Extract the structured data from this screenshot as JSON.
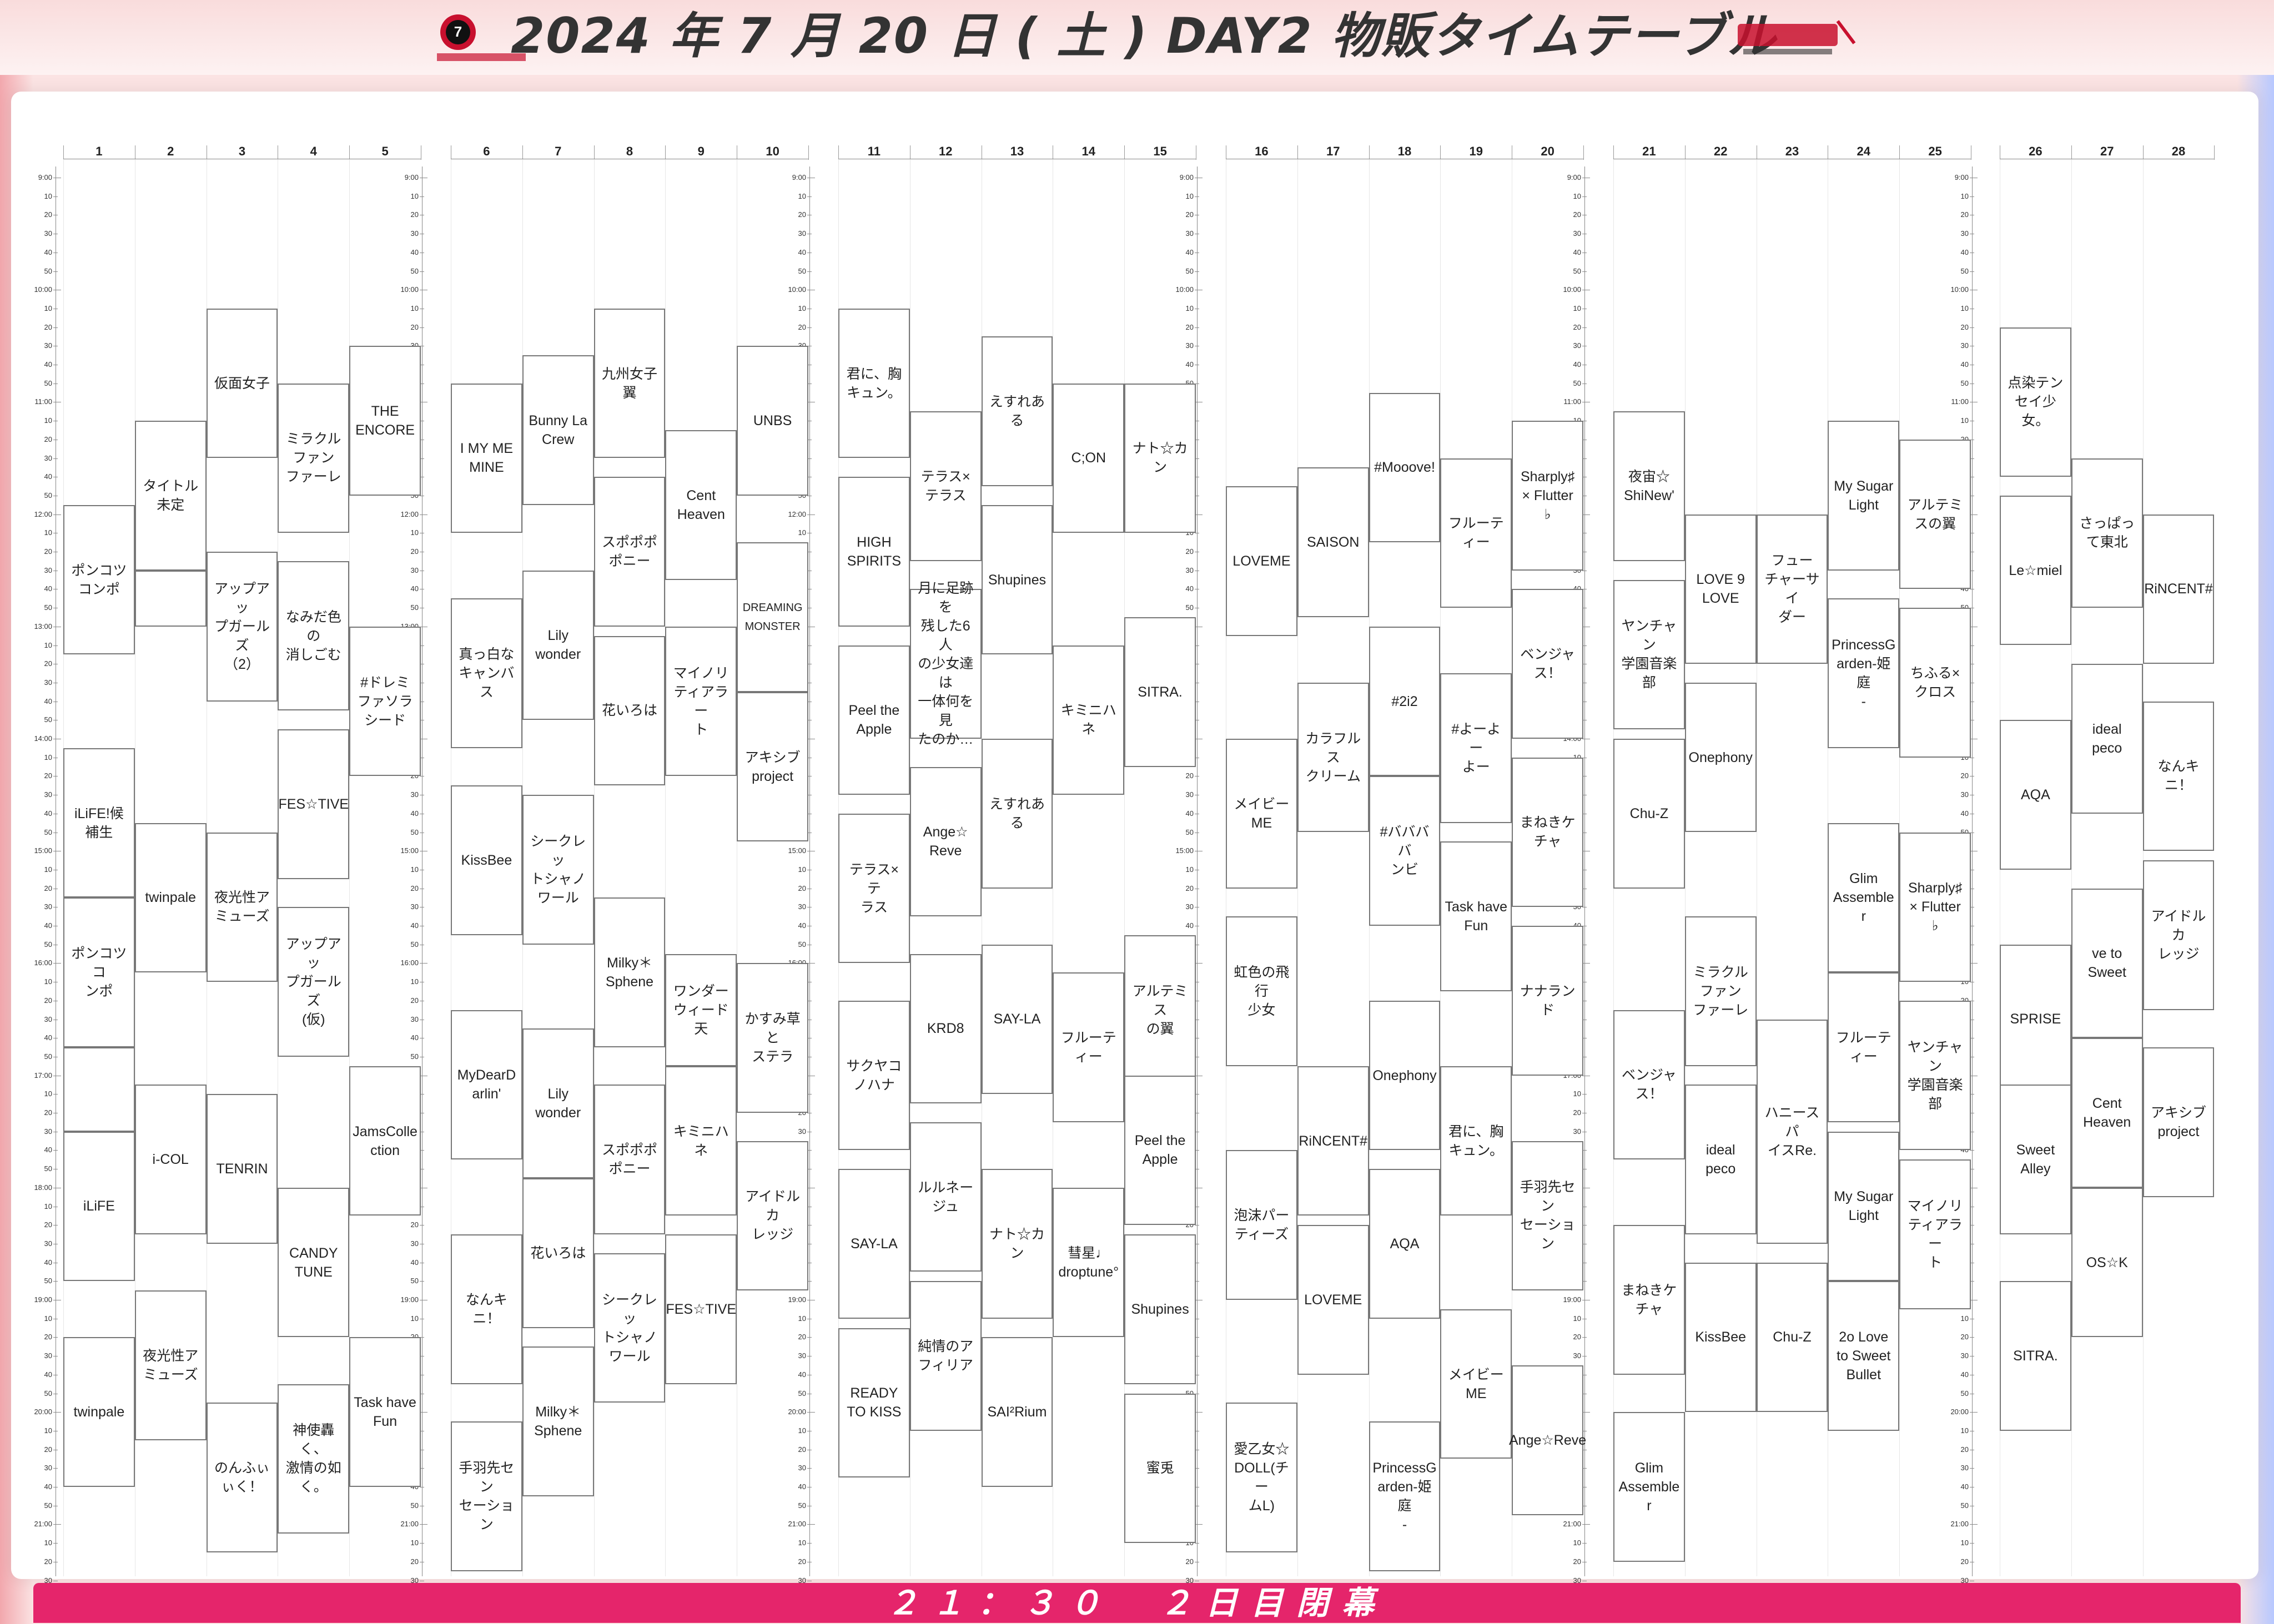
{
  "header": {
    "title": "2024 年 7 月 20 日 ( 土 ) DAY2 物販タイムテーブル",
    "logo_left_icon": "anniversary-logo-icon",
    "logo_right_icon": "event-logo-icon"
  },
  "footer": {
    "text": "２１：３０　２日目閉幕"
  },
  "colors": {
    "footer": "#e5256b",
    "slot_border": "#777777",
    "background": "#fbe3e3"
  },
  "timeline": {
    "hour_labels": [
      "9:00",
      "10:00",
      "11:00",
      "12:00",
      "13:00",
      "14:00",
      "15:00",
      "16:00",
      "17:00",
      "18:00",
      "19:00",
      "20:00",
      "21:00"
    ],
    "minute_labels": [
      "10",
      "20",
      "30",
      "40",
      "50"
    ],
    "end_label": "30"
  },
  "columns": [
    "1",
    "2",
    "3",
    "4",
    "5",
    "6",
    "7",
    "8",
    "9",
    "10",
    "11",
    "12",
    "13",
    "14",
    "15",
    "16",
    "17",
    "18",
    "19",
    "20",
    "21",
    "22",
    "23",
    "24",
    "25",
    "26",
    "27",
    "28"
  ],
  "slots": [
    {
      "col": 1,
      "start": "11:55",
      "end": "13:15",
      "name": "ポンコツコンポ"
    },
    {
      "col": 1,
      "start": "14:05",
      "end": "15:25",
      "name": "iLiFE!候補生"
    },
    {
      "col": 1,
      "start": "15:25",
      "end": "16:45",
      "name": "ポンコツコ\nンポ"
    },
    {
      "col": 1,
      "start": "16:45",
      "end": "17:30",
      "name": ""
    },
    {
      "col": 1,
      "start": "17:30",
      "end": "18:50",
      "name": "iLiFE"
    },
    {
      "col": 1,
      "start": "19:20",
      "end": "20:40",
      "name": "twinpale"
    },
    {
      "col": 2,
      "start": "11:10",
      "end": "12:30",
      "name": "タイトル未定"
    },
    {
      "col": 2,
      "start": "12:30",
      "end": "13:00",
      "name": ""
    },
    {
      "col": 2,
      "start": "14:45",
      "end": "16:05",
      "name": "twinpale"
    },
    {
      "col": 2,
      "start": "17:05",
      "end": "18:25",
      "name": "i-COL"
    },
    {
      "col": 2,
      "start": "18:55",
      "end": "20:15",
      "name": "夜光性ア\nミューズ"
    },
    {
      "col": 3,
      "start": "10:10",
      "end": "11:30",
      "name": "仮面女子"
    },
    {
      "col": 3,
      "start": "12:20",
      "end": "13:40",
      "name": "アップアッ\nプガールズ\n（2）"
    },
    {
      "col": 3,
      "start": "14:50",
      "end": "16:10",
      "name": "夜光性ア\nミューズ"
    },
    {
      "col": 3,
      "start": "17:10",
      "end": "18:30",
      "name": "TENRIN"
    },
    {
      "col": 3,
      "start": "19:55",
      "end": "21:15",
      "name": "のんふぃぃく！"
    },
    {
      "col": 4,
      "start": "10:50",
      "end": "12:10",
      "name": "ミラクル\nファン\nファーレ"
    },
    {
      "col": 4,
      "start": "12:25",
      "end": "13:45",
      "name": "なみだ色の\n消しごむ"
    },
    {
      "col": 4,
      "start": "13:55",
      "end": "15:15",
      "name": "FES☆TIVE"
    },
    {
      "col": 4,
      "start": "15:30",
      "end": "16:50",
      "name": "アップアッ\nプガールズ\n(仮)"
    },
    {
      "col": 4,
      "start": "18:00",
      "end": "19:20",
      "name": "CANDY\nTUNE"
    },
    {
      "col": 4,
      "start": "19:45",
      "end": "21:05",
      "name": "神使轟く、\n激情の如\nく。"
    },
    {
      "col": 5,
      "start": "10:30",
      "end": "11:50",
      "name": "THE ENCORE"
    },
    {
      "col": 5,
      "start": "13:00",
      "end": "14:20",
      "name": "#ドレミ\nファソラ\nシード"
    },
    {
      "col": 5,
      "start": "16:55",
      "end": "18:15",
      "name": "JamsColle\nction"
    },
    {
      "col": 5,
      "start": "19:20",
      "end": "20:40",
      "name": "Task have\nFun"
    },
    {
      "col": 6,
      "start": "10:50",
      "end": "12:10",
      "name": "I MY ME\nMINE"
    },
    {
      "col": 6,
      "start": "12:45",
      "end": "14:05",
      "name": "真っ白な\nキャンバス"
    },
    {
      "col": 6,
      "start": "14:25",
      "end": "15:45",
      "name": "KissBee"
    },
    {
      "col": 6,
      "start": "16:25",
      "end": "17:45",
      "name": "MyDearD\narlin'"
    },
    {
      "col": 6,
      "start": "18:25",
      "end": "19:45",
      "name": "なんキニ！"
    },
    {
      "col": 6,
      "start": "20:05",
      "end": "21:25",
      "name": "手羽先セン\nセーション"
    },
    {
      "col": 7,
      "start": "10:35",
      "end": "11:55",
      "name": "Bunny La\nCrew"
    },
    {
      "col": 7,
      "start": "12:30",
      "end": "13:50",
      "name": "Lily wonder"
    },
    {
      "col": 7,
      "start": "14:30",
      "end": "15:50",
      "name": "シークレッ\nトシャノ\nワール"
    },
    {
      "col": 7,
      "start": "16:35",
      "end": "17:55",
      "name": "Lily wonder"
    },
    {
      "col": 7,
      "start": "17:55",
      "end": "19:15",
      "name": "花いろは"
    },
    {
      "col": 7,
      "start": "19:25",
      "end": "20:45",
      "name": "Milky＊\nSphene"
    },
    {
      "col": 8,
      "start": "10:10",
      "end": "11:30",
      "name": "九州女子翼"
    },
    {
      "col": 8,
      "start": "11:40",
      "end": "13:00",
      "name": "スポポポポニー"
    },
    {
      "col": 8,
      "start": "13:05",
      "end": "14:25",
      "name": "花いろは"
    },
    {
      "col": 8,
      "start": "15:25",
      "end": "16:45",
      "name": "Milky＊\nSphene"
    },
    {
      "col": 8,
      "start": "17:05",
      "end": "18:25",
      "name": "スポポポポニー"
    },
    {
      "col": 8,
      "start": "18:35",
      "end": "19:55",
      "name": "シークレッ\nトシャノ\nワール"
    },
    {
      "col": 9,
      "start": "11:15",
      "end": "12:35",
      "name": "Cent Heaven"
    },
    {
      "col": 9,
      "start": "13:00",
      "end": "14:20",
      "name": "マイノリ\nティアラー\nト"
    },
    {
      "col": 9,
      "start": "15:55",
      "end": "16:55",
      "name": "ワンダー\nウィード 天"
    },
    {
      "col": 9,
      "start": "16:55",
      "end": "18:15",
      "name": "キミニハネ"
    },
    {
      "col": 9,
      "start": "18:25",
      "end": "19:45",
      "name": "FES☆TIVE"
    },
    {
      "col": 10,
      "start": "10:30",
      "end": "11:50",
      "name": "UNBS"
    },
    {
      "col": 10,
      "start": "12:15",
      "end": "13:35",
      "name": "DREAMING MONSTER"
    },
    {
      "col": 10,
      "start": "13:35",
      "end": "14:55",
      "name": "アキシブ\nproject"
    },
    {
      "col": 10,
      "start": "16:00",
      "end": "17:20",
      "name": "かすみ草と\nステラ"
    },
    {
      "col": 10,
      "start": "17:35",
      "end": "18:55",
      "name": "アイドルカ\nレッジ"
    },
    {
      "col": 11,
      "start": "10:10",
      "end": "11:30",
      "name": "君に、胸\nキュン。"
    },
    {
      "col": 11,
      "start": "11:40",
      "end": "13:00",
      "name": "HIGH SPIRITS"
    },
    {
      "col": 11,
      "start": "13:10",
      "end": "14:30",
      "name": "Peel the\nApple"
    },
    {
      "col": 11,
      "start": "14:40",
      "end": "16:00",
      "name": "テラス×テ\nラス"
    },
    {
      "col": 11,
      "start": "16:20",
      "end": "17:40",
      "name": "サクヤコノハナ"
    },
    {
      "col": 11,
      "start": "17:50",
      "end": "19:10",
      "name": "SAY-LA"
    },
    {
      "col": 11,
      "start": "19:15",
      "end": "20:35",
      "name": "READY\nTO KISS"
    },
    {
      "col": 12,
      "start": "11:05",
      "end": "12:25",
      "name": "テラス×テラス"
    },
    {
      "col": 12,
      "start": "12:40",
      "end": "14:00",
      "name": "月に足跡を\n残した6人\nの少女達は\n一体何を見\nたのか…"
    },
    {
      "col": 12,
      "start": "14:15",
      "end": "15:35",
      "name": "Ange☆\nReve"
    },
    {
      "col": 12,
      "start": "15:55",
      "end": "17:15",
      "name": "KRD8"
    },
    {
      "col": 12,
      "start": "17:25",
      "end": "18:45",
      "name": "ルルネー\nジュ"
    },
    {
      "col": 12,
      "start": "18:50",
      "end": "20:10",
      "name": "純情のア\nフィリア"
    },
    {
      "col": 13,
      "start": "10:25",
      "end": "11:45",
      "name": "えすれある"
    },
    {
      "col": 13,
      "start": "11:55",
      "end": "13:15",
      "name": "Shupines"
    },
    {
      "col": 13,
      "start": "14:00",
      "end": "15:20",
      "name": "えすれある"
    },
    {
      "col": 13,
      "start": "15:50",
      "end": "17:10",
      "name": "SAY-LA"
    },
    {
      "col": 13,
      "start": "17:50",
      "end": "19:10",
      "name": "ナト☆カン"
    },
    {
      "col": 13,
      "start": "19:20",
      "end": "20:40",
      "name": "SAI²Rium"
    },
    {
      "col": 14,
      "start": "10:50",
      "end": "12:10",
      "name": "C;ON"
    },
    {
      "col": 14,
      "start": "13:10",
      "end": "14:30",
      "name": "キミニハネ"
    },
    {
      "col": 14,
      "start": "16:05",
      "end": "17:25",
      "name": "フルーティー"
    },
    {
      "col": 14,
      "start": "18:00",
      "end": "19:20",
      "name": "彗星♩\ndroptune°"
    },
    {
      "col": 15,
      "start": "10:50",
      "end": "12:10",
      "name": "ナト☆カン"
    },
    {
      "col": 15,
      "start": "12:55",
      "end": "14:15",
      "name": "SITRA."
    },
    {
      "col": 15,
      "start": "15:45",
      "end": "17:05",
      "name": "アルテミス\nの翼"
    },
    {
      "col": 15,
      "start": "17:00",
      "end": "18:20",
      "name": "Peel the\nApple"
    },
    {
      "col": 15,
      "start": "18:25",
      "end": "19:45",
      "name": "Shupines"
    },
    {
      "col": 15,
      "start": "19:50",
      "end": "21:10",
      "name": "蜜兎"
    },
    {
      "col": 16,
      "start": "11:45",
      "end": "13:05",
      "name": "LOVEME"
    },
    {
      "col": 16,
      "start": "14:00",
      "end": "15:20",
      "name": "メイビー\nME"
    },
    {
      "col": 16,
      "start": "15:35",
      "end": "16:55",
      "name": "虹色の飛行\n少女"
    },
    {
      "col": 16,
      "start": "17:40",
      "end": "19:00",
      "name": "泡沫パー\nティーズ"
    },
    {
      "col": 16,
      "start": "19:55",
      "end": "21:15",
      "name": "愛乙女☆\nDOLL(チー\nムL)"
    },
    {
      "col": 17,
      "start": "11:35",
      "end": "12:55",
      "name": "SAISON"
    },
    {
      "col": 17,
      "start": "13:30",
      "end": "14:50",
      "name": "カラフルス\nクリーム"
    },
    {
      "col": 17,
      "start": "16:55",
      "end": "18:15",
      "name": "RiNCENT#"
    },
    {
      "col": 17,
      "start": "18:20",
      "end": "19:40",
      "name": "LOVEME"
    },
    {
      "col": 18,
      "start": "10:55",
      "end": "12:15",
      "name": "#Mooove!"
    },
    {
      "col": 18,
      "start": "13:00",
      "end": "14:20",
      "name": "#2i2"
    },
    {
      "col": 18,
      "start": "14:20",
      "end": "15:40",
      "name": "#ババババ\nンビ"
    },
    {
      "col": 18,
      "start": "16:20",
      "end": "17:40",
      "name": "Onephony"
    },
    {
      "col": 18,
      "start": "17:50",
      "end": "19:10",
      "name": "AQA"
    },
    {
      "col": 18,
      "start": "20:05",
      "end": "21:25",
      "name": "PrincessG\narden-姫庭\n-"
    },
    {
      "col": 19,
      "start": "11:30",
      "end": "12:50",
      "name": "フルーティー"
    },
    {
      "col": 19,
      "start": "13:25",
      "end": "14:45",
      "name": "#よーよー\nよー"
    },
    {
      "col": 19,
      "start": "14:55",
      "end": "16:15",
      "name": "Task have\nFun"
    },
    {
      "col": 19,
      "start": "16:55",
      "end": "18:15",
      "name": "君に、胸\nキュン。"
    },
    {
      "col": 19,
      "start": "19:05",
      "end": "20:25",
      "name": "メイビー\nME"
    },
    {
      "col": 20,
      "start": "11:10",
      "end": "12:30",
      "name": "Sharply♯\n× Flutter\n♭"
    },
    {
      "col": 20,
      "start": "12:40",
      "end": "14:00",
      "name": "ベンジャス！"
    },
    {
      "col": 20,
      "start": "14:10",
      "end": "15:30",
      "name": "まねきケチャ"
    },
    {
      "col": 20,
      "start": "15:40",
      "end": "17:00",
      "name": "ナナランド"
    },
    {
      "col": 20,
      "start": "17:35",
      "end": "18:55",
      "name": "手羽先セン\nセーション"
    },
    {
      "col": 20,
      "start": "19:35",
      "end": "20:55",
      "name": "Ange☆Reve"
    },
    {
      "col": 21,
      "start": "11:05",
      "end": "12:25",
      "name": "夜宙☆\nShiNew'"
    },
    {
      "col": 21,
      "start": "12:35",
      "end": "13:55",
      "name": "ヤンチャン\n学園音楽部"
    },
    {
      "col": 21,
      "start": "14:00",
      "end": "15:20",
      "name": "Chu-Z"
    },
    {
      "col": 21,
      "start": "16:25",
      "end": "17:45",
      "name": "ベンジャス！"
    },
    {
      "col": 21,
      "start": "18:20",
      "end": "19:40",
      "name": "まねきケ\nチャ"
    },
    {
      "col": 21,
      "start": "20:00",
      "end": "21:20",
      "name": "Glim\nAssemble\nr"
    },
    {
      "col": 22,
      "start": "12:00",
      "end": "13:20",
      "name": "LOVE 9\nLOVE"
    },
    {
      "col": 22,
      "start": "13:30",
      "end": "14:50",
      "name": "Onephony"
    },
    {
      "col": 22,
      "start": "15:35",
      "end": "16:55",
      "name": "ミラクル\nファン\nファーレ"
    },
    {
      "col": 22,
      "start": "17:05",
      "end": "18:25",
      "name": "ideal peco"
    },
    {
      "col": 22,
      "start": "18:40",
      "end": "20:00",
      "name": "KissBee"
    },
    {
      "col": 23,
      "start": "12:00",
      "end": "13:20",
      "name": "フュー\nチャーサイ\nダー"
    },
    {
      "col": 23,
      "start": "16:30",
      "end": "18:30",
      "name": "ハニースパ\nイスRe."
    },
    {
      "col": 23,
      "start": "18:40",
      "end": "20:00",
      "name": "Chu-Z"
    },
    {
      "col": 24,
      "start": "11:10",
      "end": "12:30",
      "name": "My Sugar\nLight"
    },
    {
      "col": 24,
      "start": "12:45",
      "end": "14:05",
      "name": "PrincessG\narden-姫庭\n-"
    },
    {
      "col": 24,
      "start": "14:45",
      "end": "16:05",
      "name": "Glim\nAssemble\nr"
    },
    {
      "col": 24,
      "start": "16:05",
      "end": "17:25",
      "name": "フルーティー"
    },
    {
      "col": 24,
      "start": "17:30",
      "end": "18:50",
      "name": "My Sugar\nLight"
    },
    {
      "col": 24,
      "start": "18:50",
      "end": "20:10",
      "name": "2o Love\nto Sweet\nBullet"
    },
    {
      "col": 25,
      "start": "11:20",
      "end": "12:40",
      "name": "アルテミスの翼"
    },
    {
      "col": 25,
      "start": "12:50",
      "end": "14:10",
      "name": "ちふる×クロス"
    },
    {
      "col": 25,
      "start": "14:50",
      "end": "16:10",
      "name": "Sharply♯\n× Flutter\n♭"
    },
    {
      "col": 25,
      "start": "16:20",
      "end": "17:40",
      "name": "ヤンチャン\n学園音楽部"
    },
    {
      "col": 25,
      "start": "17:45",
      "end": "19:05",
      "name": "マイノリ\nティアラー\nト"
    },
    {
      "col": 26,
      "start": "10:20",
      "end": "11:40",
      "name": "点染テンセイ少女。"
    },
    {
      "col": 26,
      "start": "11:50",
      "end": "13:10",
      "name": "Le☆miel"
    },
    {
      "col": 26,
      "start": "13:50",
      "end": "15:10",
      "name": "AQA"
    },
    {
      "col": 26,
      "start": "15:50",
      "end": "17:10",
      "name": "SPRISE"
    },
    {
      "col": 26,
      "start": "17:05",
      "end": "18:25",
      "name": "Sweet Alley"
    },
    {
      "col": 26,
      "start": "18:50",
      "end": "20:10",
      "name": "SITRA."
    },
    {
      "col": 27,
      "start": "11:30",
      "end": "12:50",
      "name": "さっぱって東北"
    },
    {
      "col": 27,
      "start": "13:20",
      "end": "14:40",
      "name": "ideal peco"
    },
    {
      "col": 27,
      "start": "15:20",
      "end": "16:40",
      "name": "ve to Sweet"
    },
    {
      "col": 27,
      "start": "16:40",
      "end": "18:00",
      "name": "Cent Heaven"
    },
    {
      "col": 27,
      "start": "18:00",
      "end": "19:20",
      "name": "OS☆K"
    },
    {
      "col": 28,
      "start": "12:00",
      "end": "13:20",
      "name": "RiNCENT#"
    },
    {
      "col": 28,
      "start": "13:40",
      "end": "15:00",
      "name": "なんキニ！"
    },
    {
      "col": 28,
      "start": "15:05",
      "end": "16:25",
      "name": "アイドルカ\nレッジ"
    },
    {
      "col": 28,
      "start": "16:45",
      "end": "18:05",
      "name": "アキシブproject"
    }
  ]
}
